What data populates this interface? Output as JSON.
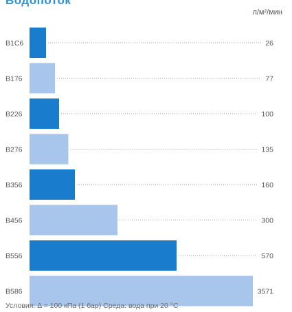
{
  "chart_data": {
    "type": "bar",
    "orientation": "horizontal",
    "title": "Водопоток",
    "unit_label": "л/м²/мин",
    "categories": [
      "B1C6",
      "B176",
      "B226",
      "B276",
      "B356",
      "B456",
      "B556",
      "B586"
    ],
    "values": [
      26,
      77,
      100,
      135,
      160,
      300,
      570,
      3571
    ],
    "value_labels": [
      "26",
      "77",
      "100",
      "135",
      "160",
      "300",
      "570",
      "3571"
    ],
    "bar_colors": [
      "#1a7ccd",
      "#a8c6eb",
      "#1a7ccd",
      "#a8c6eb",
      "#1a7ccd",
      "#a8c6eb",
      "#1a7ccd",
      "#a8c6eb"
    ],
    "grid": false
  },
  "footnote": "Условия: Δ = 100 кПа (1 бар) Среда: вода при 20 °C"
}
